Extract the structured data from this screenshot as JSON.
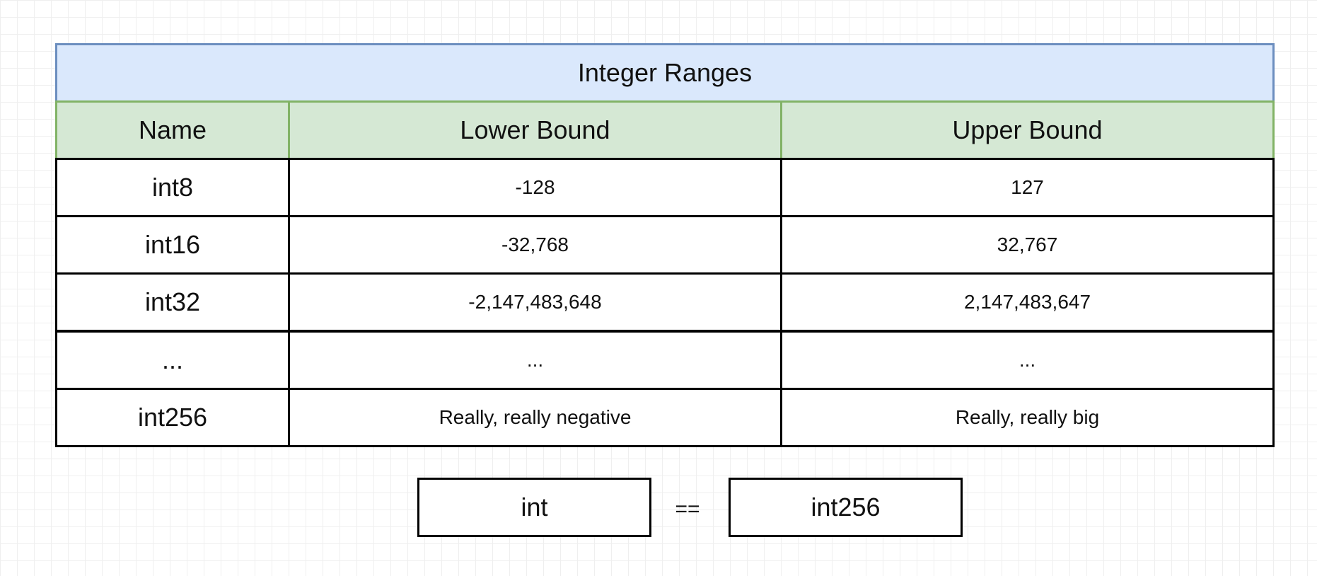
{
  "table": {
    "title": "Integer Ranges",
    "headers": [
      "Name",
      "Lower Bound",
      "Upper Bound"
    ],
    "rows": [
      {
        "name": "int8",
        "lower": "-128",
        "upper": "127"
      },
      {
        "name": "int16",
        "lower": "-32,768",
        "upper": "32,767"
      },
      {
        "name": "int32",
        "lower": "-2,147,483,648",
        "upper": "2,147,483,647"
      },
      {
        "name": "...",
        "lower": "...",
        "upper": "..."
      },
      {
        "name": "int256",
        "lower": "Really, really negative",
        "upper": "Really, really big"
      }
    ]
  },
  "equivalence": {
    "left": "int",
    "operator": "==",
    "right": "int256"
  },
  "colors": {
    "title_fill": "#dae8fc",
    "title_border": "#6c8ebf",
    "header_fill": "#d5e8d4",
    "header_border": "#82b366",
    "cell_border": "#000000"
  }
}
